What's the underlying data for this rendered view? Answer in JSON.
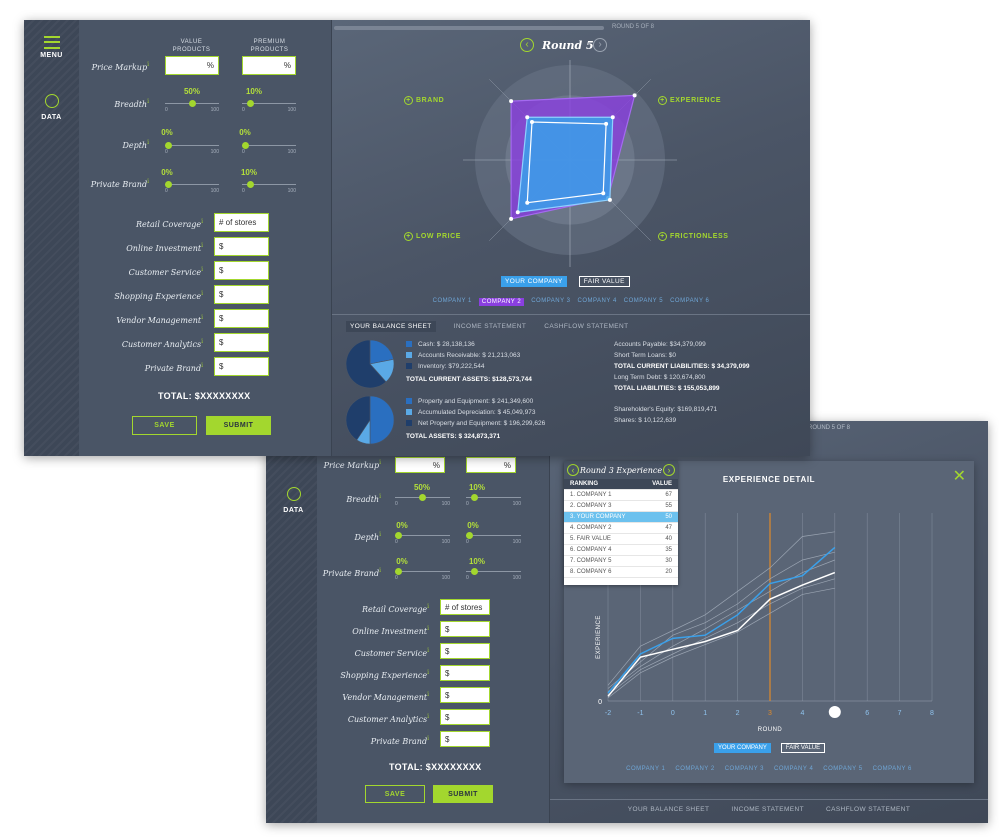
{
  "win1": {
    "rail": {
      "menu_label": "MENU",
      "data_label": "DATA"
    },
    "form": {
      "col_value": "VALUE\nPRODUCTS",
      "col_premium": "PREMIUM\nPRODUCTS",
      "price_markup": "Price Markup",
      "breadth": "Breadth",
      "depth": "Depth",
      "private_brand": "Private Brand",
      "pct_symbol": "%",
      "breadth_value": "50%",
      "breadth_premium": "10%",
      "depth_value": "0%",
      "depth_premium": "0%",
      "pb_value": "0%",
      "pb_premium": "10%",
      "breadth_value_level": 0.5,
      "breadth_premium_level": 0.1,
      "depth_value_level": 0,
      "depth_premium_level": 0,
      "pb_value_level": 0,
      "pb_premium_level": 0.1,
      "slider_min": "0",
      "slider_max": "100",
      "retail_coverage": "Retail Coverage",
      "retail_placeholder": "# of stores",
      "online_investment": "Online Investment",
      "customer_service": "Customer Service",
      "shopping_experience": "Shopping Experience",
      "vendor_management": "Vendor Management",
      "customer_analytics": "Customer Analytics",
      "private_brand2": "Private Brand",
      "dollar": "$",
      "total": "TOTAL: $XXXXXXXX",
      "save": "SAVE",
      "submit": "SUBMIT",
      "info": "i"
    },
    "main": {
      "round_progress": "ROUND 5 OF 8",
      "round_title": "Round 5",
      "axes": [
        "BRAND",
        "EXPERIENCE",
        "LOW PRICE",
        "FRICTIONLESS"
      ],
      "legend_you": "YOUR COMPANY",
      "legend_fair": "FAIR VALUE",
      "companies": [
        "COMPANY 1",
        "COMPANY 2",
        "COMPANY 3",
        "COMPANY 4",
        "COMPANY 5",
        "COMPANY 6"
      ],
      "bottom_tabs": [
        "YOUR BALANCE SHEET",
        "INCOME STATEMENT",
        "CASHFLOW STATEMENT"
      ],
      "bs_left_1": [
        "Cash: $ 28,138,136",
        "Accounts Receivable: $ 21,213,063",
        "Inventory: $79,222,544"
      ],
      "bs_left_1_total": "TOTAL CURRENT ASSETS: $128,573,744",
      "bs_left_2": [
        "Property and Equipment: $ 241,349,600",
        "Accumulated Depreciation: $ 45,049,973",
        "Net Property and Equipment: $ 196,299,626"
      ],
      "bs_left_2_total": "TOTAL ASSETS: $ 324,873,371",
      "bs_right": [
        {
          "t": "Accounts Payable: $34,379,099",
          "b": false
        },
        {
          "t": "Short Term Loans: $0",
          "b": false
        },
        {
          "t": "TOTAL CURRENT LIABILITIES: $ 34,379,099",
          "b": true
        },
        {
          "t": "Long Term Debt: $ 120,674,800",
          "b": false
        },
        {
          "t": "TOTAL LIABILITIES: $ 155,053,899",
          "b": true
        },
        {
          "t": "Shareholder's Equity: $169,819,471",
          "b": false
        },
        {
          "t": "Shares: $ 10,122,639",
          "b": false
        }
      ]
    }
  },
  "win2": {
    "round_progress": "ROUND 5 OF 8",
    "panel_title": "Round 3 Experience",
    "detail_title": "EXPERIENCE DETAIL",
    "ranking_head": "RANKING",
    "value_head": "VALUE",
    "ranking": [
      {
        "label": "1.  COMPANY 1",
        "value": "67"
      },
      {
        "label": "2.  COMPANY 3",
        "value": "55"
      },
      {
        "label": "3.  YOUR COMPANY",
        "value": "50"
      },
      {
        "label": "4.  COMPANY 2",
        "value": "47"
      },
      {
        "label": "5.  FAIR VALUE",
        "value": "40"
      },
      {
        "label": "6.  COMPANY 4",
        "value": "35"
      },
      {
        "label": "7.  COMPANY 5",
        "value": "30"
      },
      {
        "label": "8.  COMPANY 6",
        "value": "20"
      }
    ],
    "companies": [
      "COMPANY 1",
      "COMPANY 2",
      "COMPANY 3",
      "COMPANY 4",
      "COMPANY 5",
      "COMPANY 6"
    ],
    "bottom_tabs": [
      "YOUR BALANCE SHEET",
      "INCOME STATEMENT",
      "CASHFLOW STATEMENT"
    ]
  },
  "colors": {
    "accent": "#a3d72e",
    "your_company": "#3aa0ea",
    "fair_value": "#ffffff",
    "company2": "#8a3fe0",
    "highlight": "#e08a2a"
  },
  "chart_data": [
    {
      "type": "radar",
      "axes": [
        "BRAND",
        "EXPERIENCE",
        "FRICTIONLESS",
        "LOW PRICE"
      ],
      "series": [
        {
          "name": "YOUR COMPANY",
          "values": [
            0.45,
            0.45,
            0.42,
            0.55
          ]
        },
        {
          "name": "FAIR VALUE",
          "values": [
            0.4,
            0.38,
            0.35,
            0.45
          ]
        },
        {
          "name": "COMPANY 2",
          "values": [
            0.62,
            0.68,
            0.4,
            0.62
          ]
        }
      ]
    },
    {
      "type": "pie",
      "slices": [
        28.1,
        21.2,
        79.2
      ]
    },
    {
      "type": "pie",
      "slices": [
        241.3,
        45.0,
        196.3
      ]
    },
    {
      "type": "line",
      "xlabel": "ROUND",
      "ylabel": "EXPERIENCE",
      "x": [
        -2,
        -1,
        0,
        1,
        2,
        3,
        4,
        5,
        6,
        7,
        8
      ],
      "y_tick": "0",
      "highlight_x": 3,
      "current_round": 5,
      "series": [
        {
          "name": "YOUR COMPANY",
          "x": [
            -2,
            -1,
            0,
            1,
            2,
            3,
            4,
            5
          ],
          "y": [
            5,
            30,
            40,
            42,
            55,
            75,
            80,
            98
          ]
        },
        {
          "name": "FAIR VALUE",
          "x": [
            -2,
            -1,
            0,
            1,
            2,
            3,
            4,
            5
          ],
          "y": [
            3,
            28,
            33,
            38,
            45,
            65,
            74,
            82
          ]
        },
        {
          "x": [
            -2,
            -1,
            0,
            1,
            2,
            3,
            4,
            5
          ],
          "y": [
            10,
            35,
            45,
            55,
            70,
            85,
            105,
            108
          ]
        },
        {
          "x": [
            -2,
            -1,
            0,
            1,
            2,
            3,
            4,
            5
          ],
          "y": [
            8,
            25,
            42,
            50,
            62,
            78,
            90,
            95
          ]
        },
        {
          "x": [
            -2,
            -1,
            0,
            1,
            2,
            3,
            4,
            5
          ],
          "y": [
            6,
            22,
            35,
            46,
            58,
            70,
            82,
            90
          ]
        },
        {
          "x": [
            -2,
            -1,
            0,
            1,
            2,
            3,
            4,
            5
          ],
          "y": [
            4,
            20,
            30,
            40,
            50,
            62,
            72,
            78
          ]
        },
        {
          "x": [
            -2,
            -1,
            0,
            1,
            2,
            3,
            4,
            5
          ],
          "y": [
            2,
            18,
            28,
            36,
            44,
            56,
            68,
            72
          ]
        }
      ]
    }
  ]
}
